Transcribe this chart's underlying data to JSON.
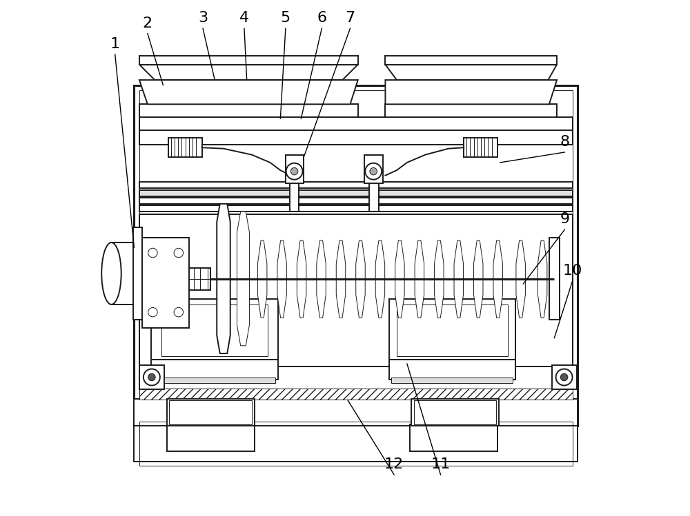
{
  "bg_color": "#ffffff",
  "line_color": "#1a1a1a",
  "line_width": 1.4,
  "thin_line": 0.7,
  "thick_line": 2.2,
  "fig_width": 10.0,
  "fig_height": 7.49,
  "label_fontsize": 16,
  "labels_data": [
    [
      1,
      0.055,
      0.915,
      0.092,
      0.52
    ],
    [
      2,
      0.118,
      0.955,
      0.148,
      0.835
    ],
    [
      3,
      0.225,
      0.965,
      0.248,
      0.845
    ],
    [
      4,
      0.305,
      0.965,
      0.31,
      0.845
    ],
    [
      5,
      0.385,
      0.965,
      0.375,
      0.77
    ],
    [
      6,
      0.455,
      0.965,
      0.415,
      0.77
    ],
    [
      7,
      0.51,
      0.965,
      0.42,
      0.695
    ],
    [
      8,
      0.925,
      0.725,
      0.8,
      0.685
    ],
    [
      9,
      0.925,
      0.575,
      0.845,
      0.45
    ],
    [
      10,
      0.94,
      0.475,
      0.905,
      0.345
    ],
    [
      11,
      0.685,
      0.1,
      0.62,
      0.295
    ],
    [
      12,
      0.595,
      0.1,
      0.505,
      0.225
    ]
  ]
}
